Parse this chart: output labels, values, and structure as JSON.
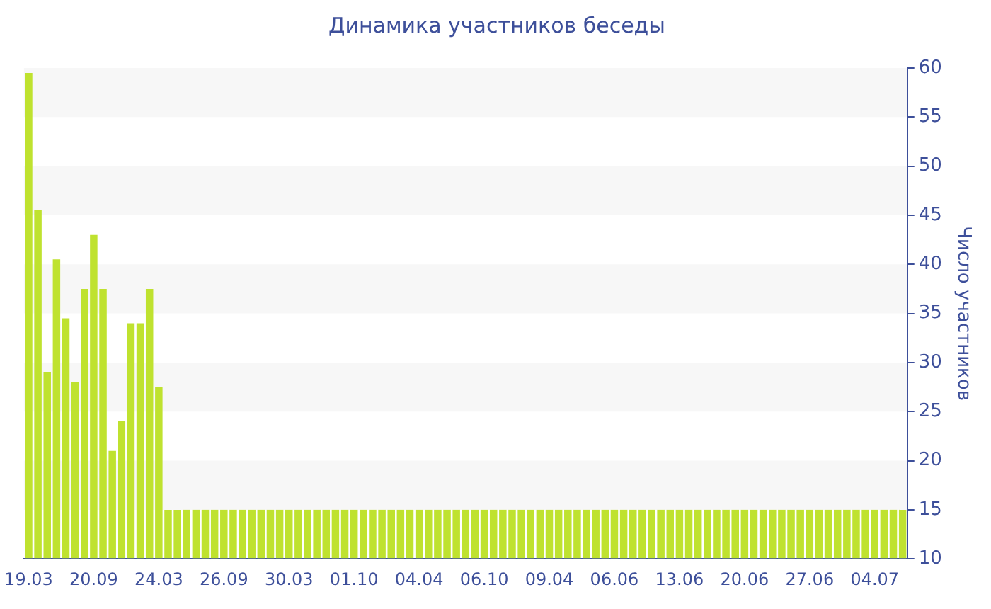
{
  "chart_data": {
    "type": "bar",
    "title": "Динамика участников беседы",
    "ylabel": "Число участников",
    "categories": [
      "19.03",
      null,
      null,
      null,
      null,
      null,
      null,
      "20.09",
      null,
      null,
      null,
      null,
      null,
      null,
      "24.03",
      null,
      null,
      null,
      null,
      null,
      null,
      "26.09",
      null,
      null,
      null,
      null,
      null,
      null,
      "30.03",
      null,
      null,
      null,
      null,
      null,
      null,
      "01.10",
      null,
      null,
      null,
      null,
      null,
      null,
      "04.04",
      null,
      null,
      null,
      null,
      null,
      null,
      "06.10",
      null,
      null,
      null,
      null,
      null,
      null,
      "09.04",
      null,
      null,
      null,
      null,
      null,
      null,
      "06.06",
      null,
      null,
      null,
      null,
      null,
      null,
      "13.06",
      null,
      null,
      null,
      null,
      null,
      null,
      "20.06",
      null,
      null,
      null,
      null,
      null,
      null,
      "27.06",
      null,
      null,
      null,
      null,
      null,
      null,
      "04.07",
      null,
      null,
      null
    ],
    "values": [
      59.5,
      45.5,
      29,
      40.5,
      34.5,
      28,
      37.5,
      43,
      37.5,
      21,
      24,
      34,
      34,
      37.5,
      27.5,
      15,
      15,
      15,
      15,
      15,
      15,
      15,
      15,
      15,
      15,
      15,
      15,
      15,
      15,
      15,
      15,
      15,
      15,
      15,
      15,
      15,
      15,
      15,
      15,
      15,
      15,
      15,
      15,
      15,
      15,
      15,
      15,
      15,
      15,
      15,
      15,
      15,
      15,
      15,
      15,
      15,
      15,
      15,
      15,
      15,
      15,
      15,
      15,
      15,
      15,
      15,
      15,
      15,
      15,
      15,
      15,
      15,
      15,
      15,
      15,
      15,
      15,
      15,
      15,
      15,
      15,
      15,
      15,
      15,
      15,
      15,
      15,
      15,
      15,
      15,
      15,
      15,
      15,
      15,
      15
    ],
    "color": "#bfe22f",
    "ylim": [
      10,
      60
    ],
    "yticks": [
      10,
      15,
      20,
      25,
      30,
      35,
      40,
      45,
      50,
      55,
      60
    ]
  }
}
